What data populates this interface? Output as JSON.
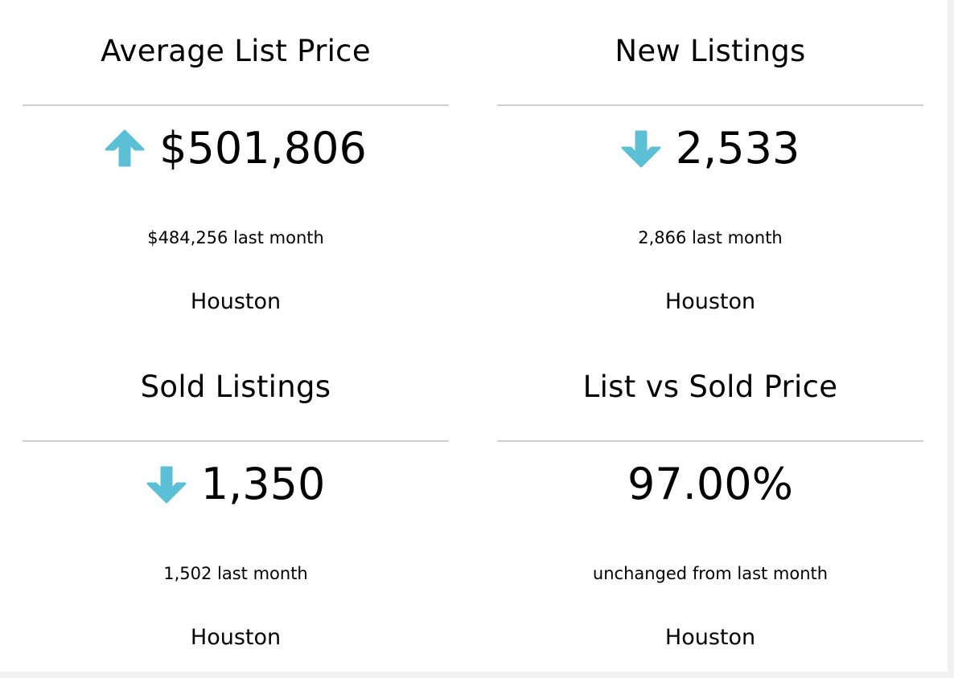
{
  "colors": {
    "arrow": "#5bbfd6",
    "rule": "#d0d0d0"
  },
  "cards": [
    {
      "title": "Average List Price",
      "value": "$501,806",
      "trend": "up",
      "trend_icon": "arrow-up-icon",
      "comparison": "$484,256 last month",
      "location": "Houston"
    },
    {
      "title": "New Listings",
      "value": "2,533",
      "trend": "down",
      "trend_icon": "arrow-down-icon",
      "comparison": "2,866 last month",
      "location": "Houston"
    },
    {
      "title": "Sold Listings",
      "value": "1,350",
      "trend": "down",
      "trend_icon": "arrow-down-icon",
      "comparison": "1,502 last month",
      "location": "Houston"
    },
    {
      "title": "List vs Sold Price",
      "value": "97.00%",
      "trend": "none",
      "trend_icon": "",
      "comparison": "unchanged from last month",
      "location": "Houston"
    }
  ]
}
